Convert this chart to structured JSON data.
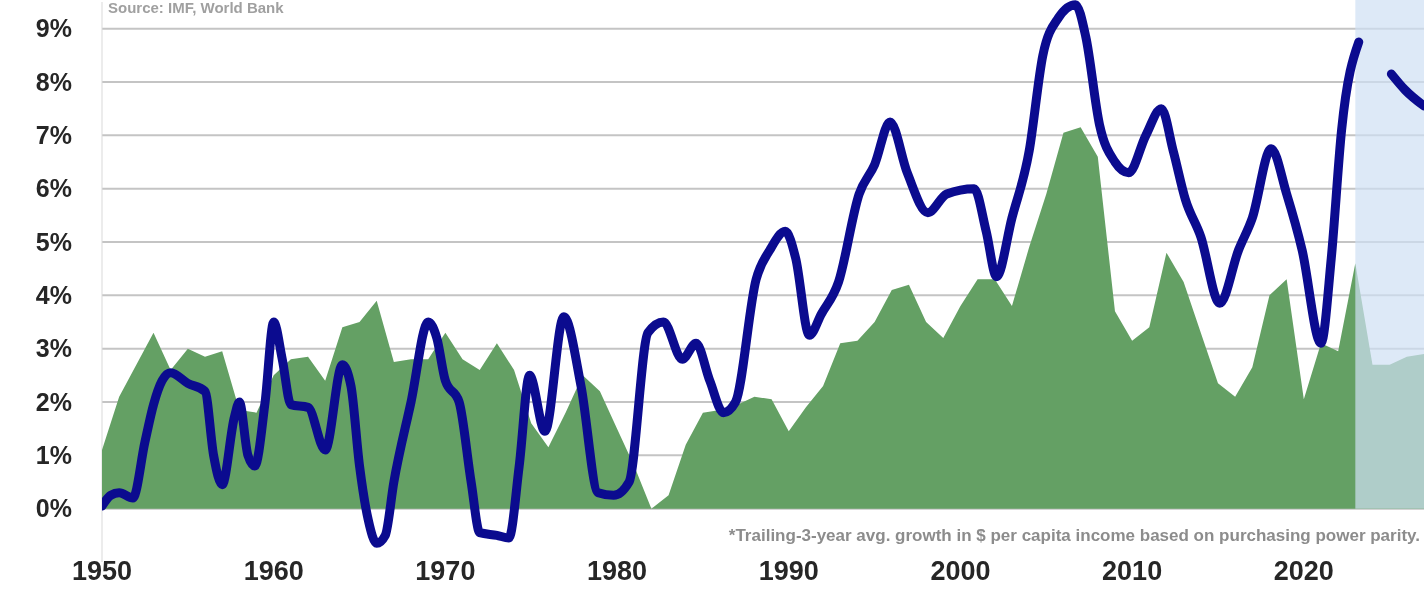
{
  "chart_data": {
    "type": "line",
    "xlim": [
      1950,
      2027
    ],
    "xticks": [
      1950,
      1960,
      1970,
      1980,
      1990,
      2000,
      2010,
      2020
    ],
    "ylim": [
      -1,
      9.5
    ],
    "yticks": [
      {
        "value": 0,
        "label": "0%"
      },
      {
        "value": 1,
        "label": "1%"
      },
      {
        "value": 2,
        "label": "2%"
      },
      {
        "value": 3,
        "label": "3%"
      },
      {
        "value": 4,
        "label": "4%"
      },
      {
        "value": 5,
        "label": "5%"
      },
      {
        "value": 6,
        "label": "6%"
      },
      {
        "value": 7,
        "label": "7%"
      },
      {
        "value": 8,
        "label": "8%"
      },
      {
        "value": 9,
        "label": "9%"
      }
    ],
    "grid": "y",
    "marker": "none",
    "bands": [
      {
        "axis": "x",
        "from": 2023,
        "to": 2027,
        "color": "#cfe0f3"
      }
    ],
    "annotations": [
      "Source: IMF, World Bank",
      "*Trailing-3-year avg. growth in $ per capita income based on purchasing power parity."
    ],
    "series": [
      {
        "type": "area",
        "color": "#64a064",
        "x": [
          1950,
          1951,
          1952,
          1953,
          1954,
          1955,
          1956,
          1957,
          1958,
          1959,
          1960,
          1961,
          1962,
          1963,
          1964,
          1965,
          1966,
          1967,
          1968,
          1969,
          1970,
          1971,
          1972,
          1973,
          1974,
          1975,
          1976,
          1977,
          1978,
          1979,
          1980,
          1981,
          1982,
          1983,
          1984,
          1985,
          1986,
          1987,
          1988,
          1989,
          1990,
          1991,
          1992,
          1993,
          1994,
          1995,
          1996,
          1997,
          1998,
          1999,
          2000,
          2001,
          2002,
          2003,
          2004,
          2005,
          2006,
          2007,
          2008,
          2009,
          2010,
          2011,
          2012,
          2013,
          2014,
          2015,
          2016,
          2017,
          2018,
          2019,
          2020,
          2021,
          2022,
          2023,
          2024,
          2025,
          2026,
          2027
        ],
        "values": [
          1.1,
          2.1,
          2.7,
          3.3,
          2.6,
          3.0,
          2.85,
          2.95,
          1.85,
          1.8,
          2.5,
          2.8,
          2.85,
          2.4,
          3.4,
          3.5,
          3.9,
          2.75,
          2.8,
          2.8,
          3.3,
          2.8,
          2.6,
          3.1,
          2.6,
          1.6,
          1.15,
          1.8,
          2.5,
          2.2,
          1.5,
          0.8,
          0.0,
          0.25,
          1.2,
          1.8,
          1.85,
          1.95,
          2.1,
          2.05,
          1.45,
          1.9,
          2.3,
          3.1,
          3.15,
          3.5,
          4.1,
          4.2,
          3.5,
          3.2,
          3.8,
          4.3,
          4.3,
          3.8,
          4.9,
          5.9,
          7.05,
          7.15,
          6.6,
          3.7,
          3.15,
          3.4,
          4.8,
          4.25,
          3.3,
          2.35,
          2.1,
          2.65,
          4.0,
          4.3,
          2.05,
          3.1,
          2.95,
          4.6,
          2.7,
          2.7,
          2.85,
          2.9
        ]
      },
      {
        "color": "#0b0b8f",
        "line_style": "solid",
        "x": [
          1950,
          1950.5,
          1951,
          1951.8,
          1952.5,
          1953,
          1953.5,
          1954,
          1955,
          1956,
          1956.5,
          1957,
          1957.7,
          1958,
          1958.5,
          1958.9,
          1959.5,
          1960,
          1960.5,
          1961,
          1962,
          1963,
          1964,
          1964.5,
          1965,
          1965.5,
          1966,
          1966.5,
          1967,
          1968,
          1969,
          1969.5,
          1970,
          1970.8,
          1971.5,
          1972,
          1973,
          1973.7,
          1974.3,
          1974.9,
          1975.8,
          1976.9,
          1977.9,
          1978.9,
          1979.8,
          1980.7,
          1981.8,
          1982.7,
          1983.8,
          1984.6,
          1985.4,
          1986.2,
          1986.9,
          1988.1,
          1988.9,
          1989.8,
          1990.4,
          1991.2,
          1991.9,
          1992.9,
          1994.1,
          1995.0,
          1995.9,
          1996.9,
          1998.1,
          1999.2,
          2000.8,
          2001.5,
          2002.1,
          2003.0,
          2004.0,
          2004.8,
          2005.7,
          2006.7,
          2007.3,
          2008.1,
          2009.0,
          2009.8,
          2010.8,
          2011.7,
          2012.4,
          2013.1,
          2014.0,
          2015.1,
          2016.2,
          2017.0,
          2018.1,
          2019.0,
          2019.9,
          2021.0,
          2021.6,
          2022.2,
          2023.2,
          2023.7,
          2024.3,
          2025.1,
          2025.9,
          2027
        ],
        "values": [
          0.05,
          0.25,
          0.3,
          0.2,
          1.25,
          1.95,
          2.4,
          2.55,
          2.35,
          2.2,
          1.0,
          0.45,
          1.7,
          2.0,
          1.0,
          0.8,
          2.0,
          3.5,
          2.8,
          1.95,
          1.9,
          1.1,
          2.7,
          2.3,
          0.8,
          -0.2,
          -0.65,
          -0.5,
          0.5,
          2.0,
          3.5,
          3.2,
          2.4,
          2.0,
          0.5,
          -0.45,
          -0.5,
          -0.55,
          0.8,
          2.5,
          1.45,
          3.6,
          2.3,
          0.3,
          0.25,
          0.5,
          3.3,
          3.5,
          2.8,
          3.1,
          2.4,
          1.8,
          2.0,
          4.3,
          4.85,
          5.2,
          4.7,
          3.25,
          3.65,
          4.25,
          5.9,
          6.45,
          7.25,
          6.3,
          5.55,
          5.9,
          6.0,
          5.2,
          4.35,
          5.45,
          6.7,
          8.5,
          9.2,
          9.45,
          8.85,
          7.2,
          6.5,
          6.3,
          7.0,
          7.5,
          6.7,
          5.8,
          5.1,
          3.85,
          4.85,
          5.45,
          6.75,
          5.9,
          4.85,
          3.1,
          4.7,
          7.1,
          8.75,
          null,
          null,
          8.15,
          7.85,
          7.55
        ]
      }
    ]
  }
}
